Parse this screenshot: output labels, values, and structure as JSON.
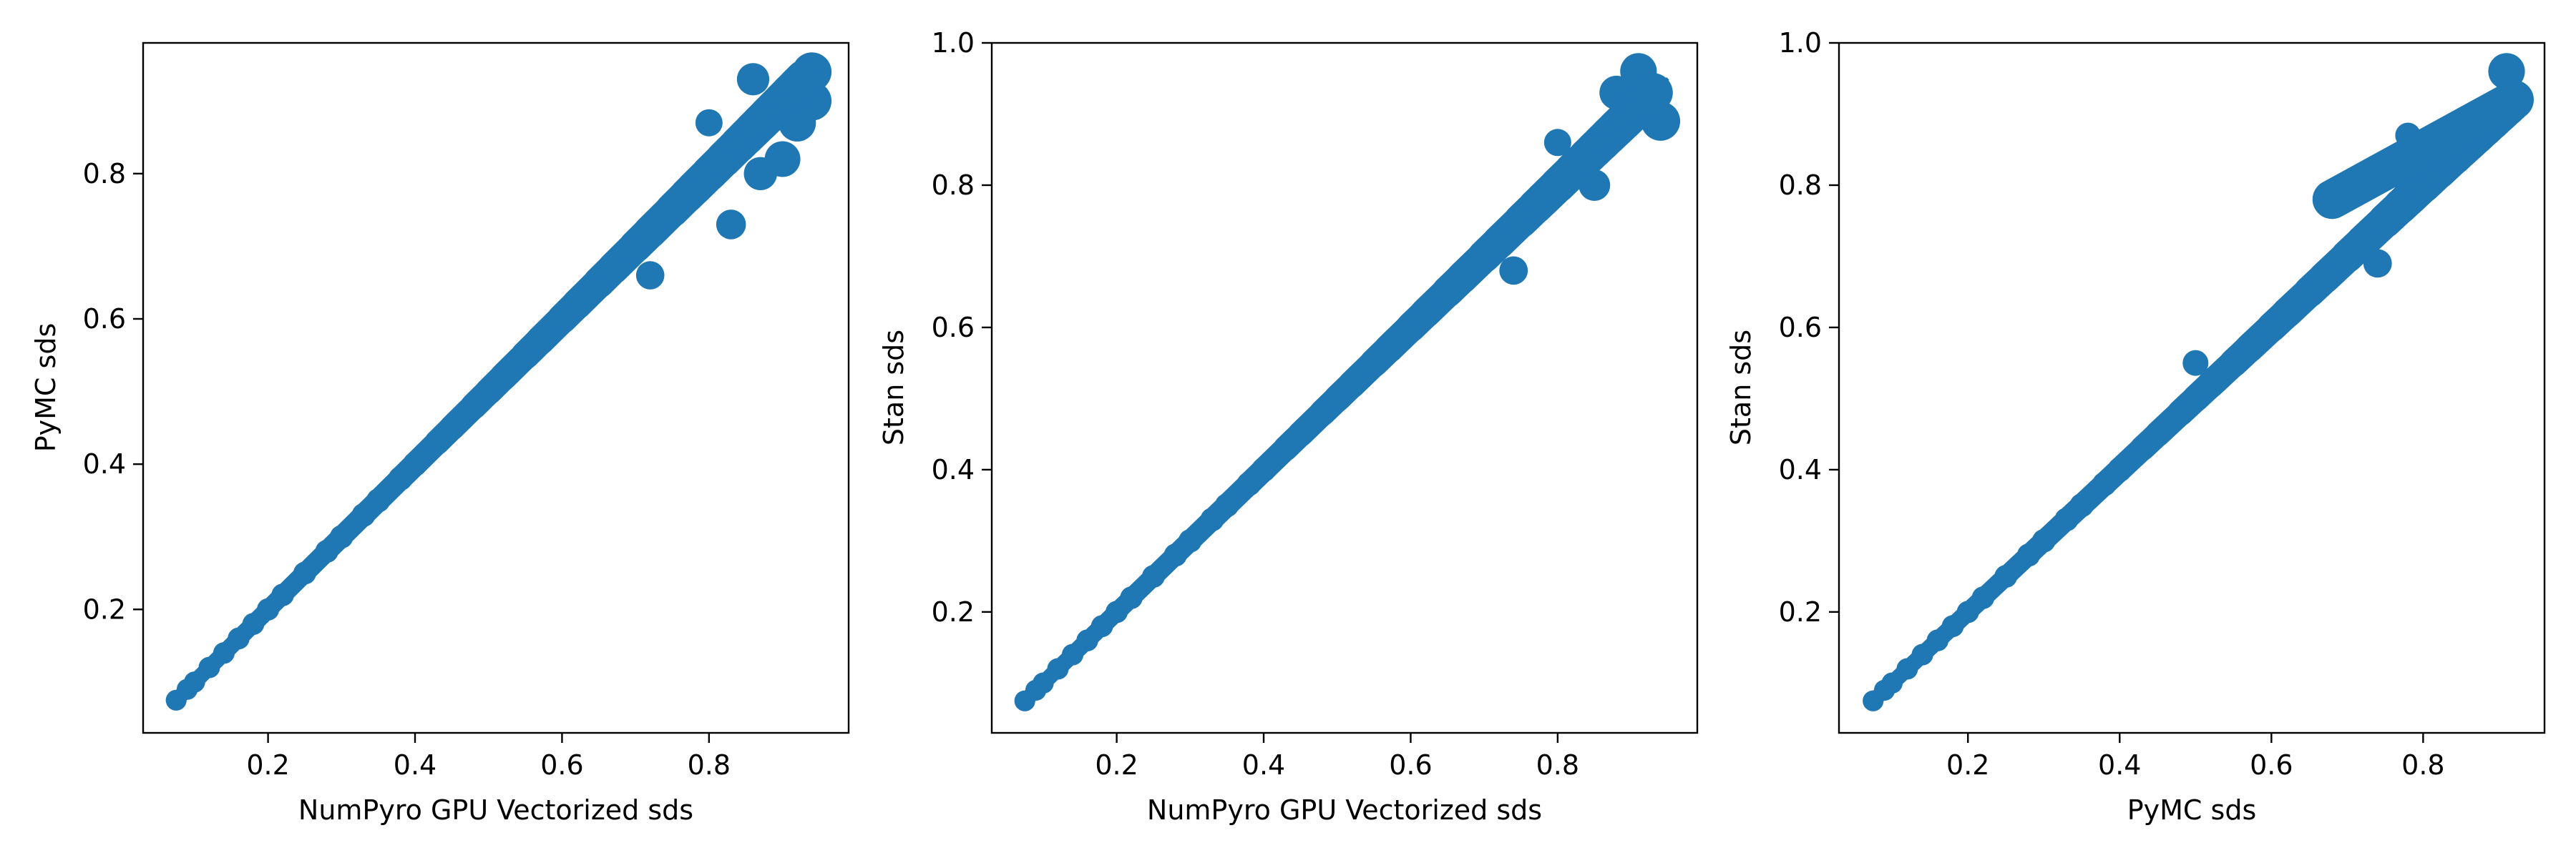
{
  "chart_data": [
    {
      "type": "scatter",
      "xlabel": "NumPyro GPU Vectorized sds",
      "ylabel": "PyMC sds",
      "xlim": [
        0.03,
        0.99
      ],
      "ylim": [
        0.03,
        0.98
      ],
      "xticks": [
        "0.2",
        "0.4",
        "0.6",
        "0.8"
      ],
      "yticks": [
        "0.2",
        "0.4",
        "0.6",
        "0.8"
      ],
      "xtick_values": [
        0.2,
        0.4,
        0.6,
        0.8
      ],
      "ytick_values": [
        0.2,
        0.4,
        0.6,
        0.8
      ],
      "color": "#1f77b4",
      "reference_line": {
        "from": [
          0.07,
          0.07
        ],
        "to": [
          0.95,
          0.95
        ]
      },
      "series": [
        {
          "x": [
            0.075,
            0.09,
            0.1,
            0.12,
            0.14,
            0.16,
            0.18,
            0.2,
            0.22,
            0.25,
            0.28,
            0.3,
            0.33,
            0.35,
            0.38,
            0.4,
            0.43,
            0.45,
            0.48,
            0.5,
            0.52,
            0.55,
            0.57,
            0.6,
            0.62,
            0.65,
            0.67,
            0.7,
            0.72,
            0.75,
            0.77,
            0.78,
            0.8,
            0.82,
            0.84,
            0.85,
            0.86,
            0.87,
            0.88,
            0.89,
            0.9,
            0.91,
            0.92,
            0.93,
            0.94,
            0.94,
            0.83,
            0.86,
            0.72,
            0.9,
            0.92,
            0.8,
            0.87
          ],
          "y": [
            0.075,
            0.09,
            0.1,
            0.12,
            0.14,
            0.16,
            0.18,
            0.2,
            0.22,
            0.25,
            0.28,
            0.3,
            0.33,
            0.35,
            0.38,
            0.4,
            0.43,
            0.45,
            0.48,
            0.5,
            0.52,
            0.55,
            0.57,
            0.6,
            0.62,
            0.65,
            0.67,
            0.7,
            0.72,
            0.75,
            0.77,
            0.78,
            0.8,
            0.82,
            0.84,
            0.85,
            0.86,
            0.87,
            0.88,
            0.89,
            0.9,
            0.91,
            0.92,
            0.93,
            0.9,
            0.94,
            0.73,
            0.93,
            0.66,
            0.82,
            0.87,
            0.87,
            0.8
          ]
        }
      ]
    },
    {
      "type": "scatter",
      "xlabel": "NumPyro GPU Vectorized sds",
      "ylabel": "Stan sds",
      "xlim": [
        0.03,
        0.99
      ],
      "ylim": [
        0.03,
        1.0
      ],
      "xticks": [
        "0.2",
        "0.4",
        "0.6",
        "0.8"
      ],
      "yticks": [
        "0.2",
        "0.4",
        "0.6",
        "0.8",
        "1.0"
      ],
      "xtick_values": [
        0.2,
        0.4,
        0.6,
        0.8
      ],
      "ytick_values": [
        0.2,
        0.4,
        0.6,
        0.8,
        1.0
      ],
      "color": "#1f77b4",
      "reference_line": {
        "from": [
          0.07,
          0.07
        ],
        "to": [
          0.95,
          0.95
        ]
      },
      "series": [
        {
          "x": [
            0.075,
            0.09,
            0.1,
            0.12,
            0.14,
            0.16,
            0.18,
            0.2,
            0.22,
            0.25,
            0.28,
            0.3,
            0.33,
            0.35,
            0.38,
            0.4,
            0.43,
            0.45,
            0.48,
            0.5,
            0.52,
            0.55,
            0.57,
            0.6,
            0.62,
            0.65,
            0.67,
            0.7,
            0.72,
            0.75,
            0.77,
            0.78,
            0.8,
            0.82,
            0.84,
            0.85,
            0.86,
            0.87,
            0.88,
            0.89,
            0.9,
            0.91,
            0.92,
            0.93,
            0.94,
            0.91,
            0.85,
            0.74,
            0.88,
            0.8
          ],
          "y": [
            0.075,
            0.09,
            0.1,
            0.12,
            0.14,
            0.16,
            0.18,
            0.2,
            0.22,
            0.25,
            0.28,
            0.3,
            0.33,
            0.35,
            0.38,
            0.4,
            0.43,
            0.45,
            0.48,
            0.5,
            0.52,
            0.55,
            0.57,
            0.6,
            0.62,
            0.65,
            0.67,
            0.7,
            0.72,
            0.75,
            0.77,
            0.78,
            0.8,
            0.82,
            0.84,
            0.85,
            0.86,
            0.87,
            0.88,
            0.89,
            0.9,
            0.91,
            0.92,
            0.93,
            0.89,
            0.96,
            0.8,
            0.68,
            0.93,
            0.86
          ]
        }
      ]
    },
    {
      "type": "scatter",
      "xlabel": "PyMC sds",
      "ylabel": "Stan sds",
      "xlim": [
        0.03,
        0.96
      ],
      "ylim": [
        0.03,
        1.0
      ],
      "xticks": [
        "0.2",
        "0.4",
        "0.6",
        "0.8"
      ],
      "yticks": [
        "0.2",
        "0.4",
        "0.6",
        "0.8",
        "1.0"
      ],
      "xtick_values": [
        0.2,
        0.4,
        0.6,
        0.8
      ],
      "ytick_values": [
        0.2,
        0.4,
        0.6,
        0.8,
        1.0
      ],
      "color": "#1f77b4",
      "reference_line": null,
      "series": [
        {
          "x": [
            0.075,
            0.09,
            0.1,
            0.12,
            0.14,
            0.16,
            0.18,
            0.2,
            0.22,
            0.25,
            0.28,
            0.3,
            0.33,
            0.35,
            0.38,
            0.4,
            0.43,
            0.45,
            0.48,
            0.5,
            0.52,
            0.55,
            0.57,
            0.6,
            0.62,
            0.65,
            0.67,
            0.7,
            0.72,
            0.75,
            0.77,
            0.78,
            0.8,
            0.82,
            0.84,
            0.85,
            0.86,
            0.87,
            0.88,
            0.89,
            0.9,
            0.91,
            0.92,
            0.68,
            0.74,
            0.91,
            0.78,
            0.5
          ],
          "y": [
            0.075,
            0.09,
            0.1,
            0.12,
            0.14,
            0.16,
            0.18,
            0.2,
            0.22,
            0.25,
            0.28,
            0.3,
            0.33,
            0.35,
            0.38,
            0.4,
            0.43,
            0.45,
            0.48,
            0.5,
            0.52,
            0.55,
            0.57,
            0.6,
            0.62,
            0.65,
            0.67,
            0.7,
            0.72,
            0.75,
            0.77,
            0.78,
            0.8,
            0.82,
            0.84,
            0.85,
            0.86,
            0.87,
            0.88,
            0.89,
            0.9,
            0.91,
            0.92,
            0.78,
            0.69,
            0.96,
            0.87,
            0.55
          ]
        }
      ]
    }
  ]
}
